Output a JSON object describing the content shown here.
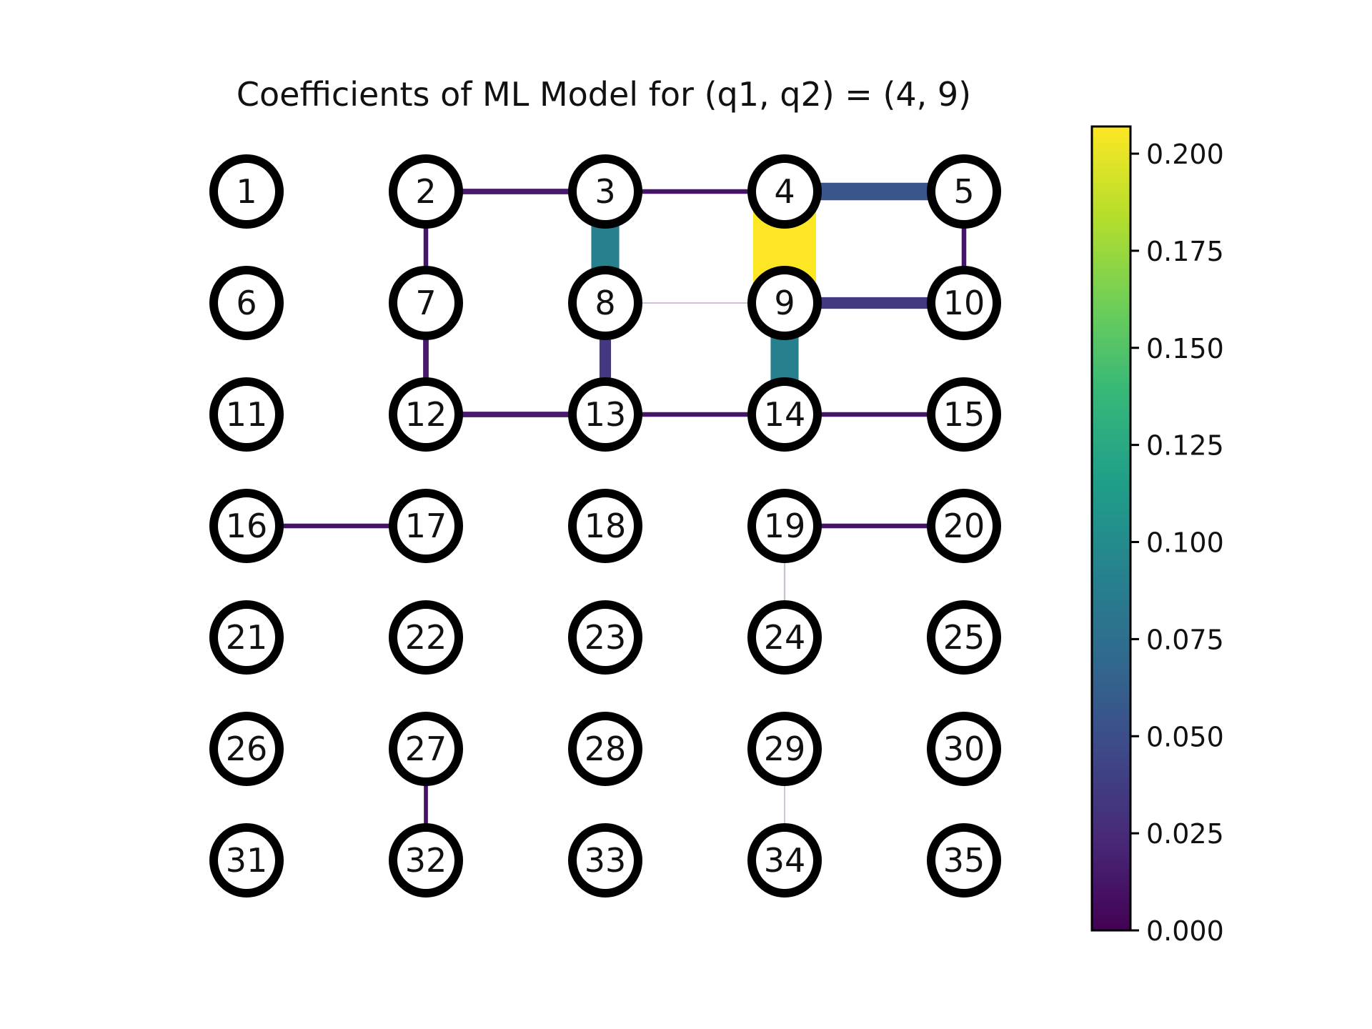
{
  "chart_data": {
    "type": "network",
    "title": "Coefficients of ML Model for (q1, q2) = (4, 9)",
    "grid": {
      "rows": 7,
      "cols": 5
    },
    "nodes": [
      1,
      2,
      3,
      4,
      5,
      6,
      7,
      8,
      9,
      10,
      11,
      12,
      13,
      14,
      15,
      16,
      17,
      18,
      19,
      20,
      21,
      22,
      23,
      24,
      25,
      26,
      27,
      28,
      29,
      30,
      31,
      32,
      33,
      34,
      35
    ],
    "edges": [
      {
        "source": 2,
        "target": 3,
        "value": 0.015
      },
      {
        "source": 3,
        "target": 4,
        "value": 0.012
      },
      {
        "source": 4,
        "target": 5,
        "value": 0.055
      },
      {
        "source": 2,
        "target": 7,
        "value": 0.012
      },
      {
        "source": 3,
        "target": 8,
        "value": 0.09
      },
      {
        "source": 4,
        "target": 9,
        "value": 0.207
      },
      {
        "source": 5,
        "target": 10,
        "value": 0.012
      },
      {
        "source": 8,
        "target": 9,
        "value": 0.001
      },
      {
        "source": 9,
        "target": 10,
        "value": 0.035
      },
      {
        "source": 7,
        "target": 12,
        "value": 0.015
      },
      {
        "source": 8,
        "target": 13,
        "value": 0.035
      },
      {
        "source": 9,
        "target": 14,
        "value": 0.09
      },
      {
        "source": 12,
        "target": 13,
        "value": 0.015
      },
      {
        "source": 13,
        "target": 14,
        "value": 0.012
      },
      {
        "source": 14,
        "target": 15,
        "value": 0.012
      },
      {
        "source": 16,
        "target": 17,
        "value": 0.012
      },
      {
        "source": 19,
        "target": 20,
        "value": 0.012
      },
      {
        "source": 19,
        "target": 24,
        "value": 0.002
      },
      {
        "source": 27,
        "target": 32,
        "value": 0.01
      },
      {
        "source": 29,
        "target": 34,
        "value": 0.001
      }
    ],
    "colorbar": {
      "colormap": "viridis",
      "range": [
        0.0,
        0.207
      ],
      "ticks": [
        "0.000",
        "0.025",
        "0.050",
        "0.075",
        "0.100",
        "0.125",
        "0.150",
        "0.175",
        "0.200"
      ]
    }
  }
}
